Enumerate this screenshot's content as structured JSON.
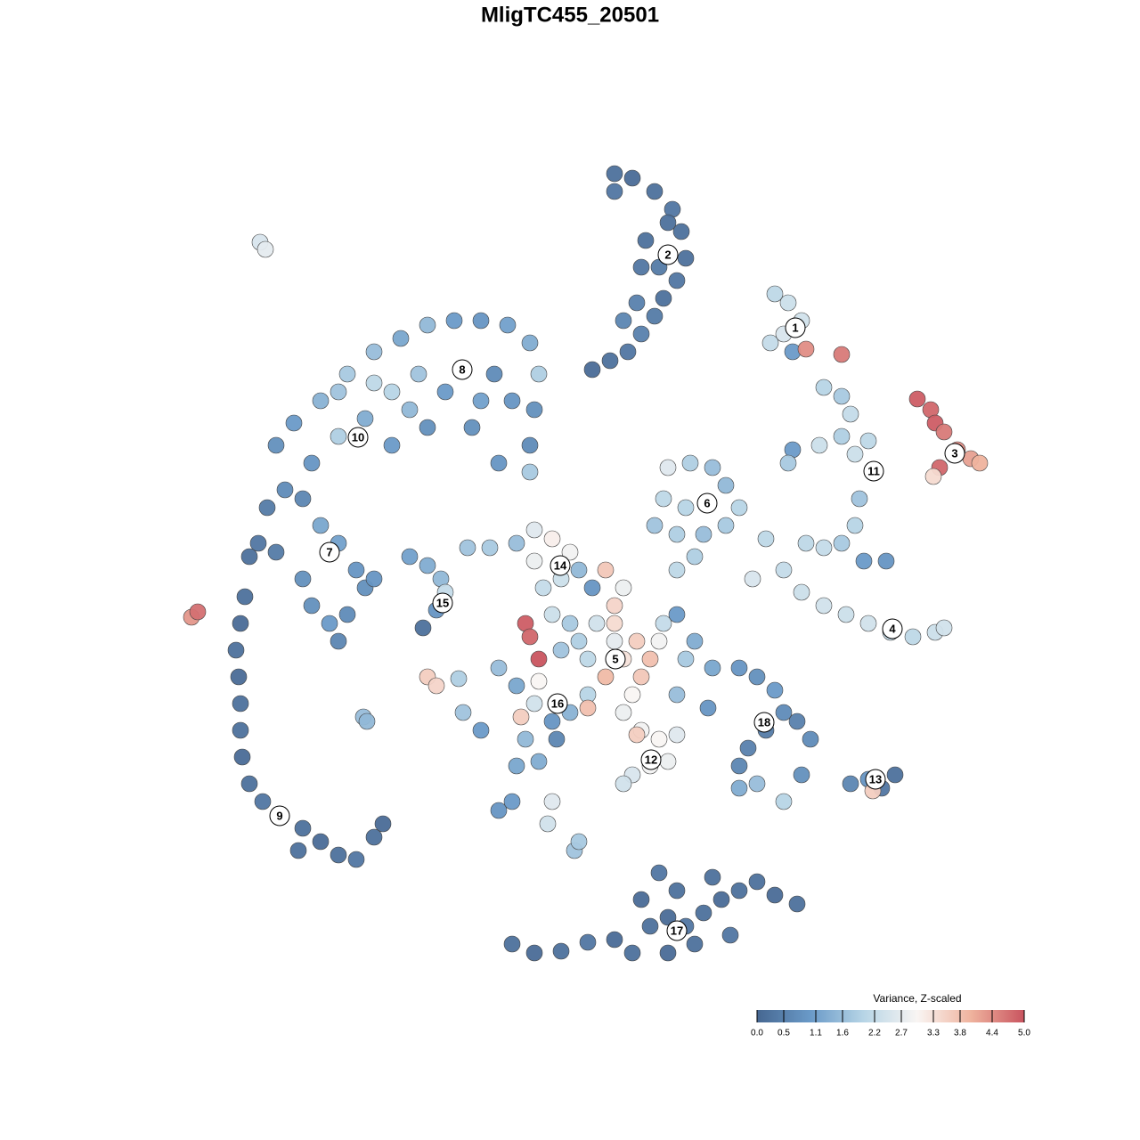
{
  "chart_data": {
    "type": "scatter",
    "title": "MligTC455_20501",
    "xlim": [
      0,
      1280
    ],
    "ylim": [
      1280,
      0
    ],
    "x": [
      690,
      710,
      735,
      755,
      765,
      770,
      760,
      745,
      735,
      720,
      705,
      685,
      665,
      700,
      720,
      725,
      740,
      690,
      750,
      715,
      870,
      885,
      900,
      880,
      865,
      890,
      905,
      945,
      1030,
      1045,
      1050,
      1060,
      1075,
      1090,
      1100,
      1055,
      1048,
      925,
      945,
      955,
      945,
      960,
      975,
      980,
      965,
      960,
      945,
      925,
      905,
      970,
      995,
      890,
      920,
      885,
      860,
      880,
      900,
      925,
      950,
      975,
      1000,
      1025,
      1050,
      1060,
      845,
      750,
      775,
      800,
      815,
      795,
      770,
      745,
      735,
      760,
      790,
      815,
      830,
      780,
      760,
      310,
      330,
      360,
      390,
      420,
      450,
      480,
      510,
      540,
      570,
      595,
      605,
      600,
      595,
      595,
      560,
      530,
      500,
      470,
      440,
      410,
      380,
      350,
      440,
      480,
      520,
      555,
      575,
      540,
      460,
      420,
      380,
      300,
      320,
      340,
      360,
      380,
      400,
      410,
      390,
      370,
      350,
      380,
      420,
      340,
      290,
      280,
      310,
      275,
      270,
      265,
      268,
      270,
      270,
      272,
      280,
      295,
      315,
      340,
      360,
      380,
      400,
      420,
      430,
      335,
      460,
      480,
      495,
      500,
      490,
      475,
      525,
      550,
      580,
      600,
      620,
      640,
      630,
      610,
      600,
      650,
      680,
      700,
      690,
      670,
      650,
      690,
      715,
      700,
      720,
      730,
      740,
      710,
      680,
      660,
      640,
      620,
      630,
      745,
      760,
      780,
      770,
      665,
      690,
      560,
      580,
      600,
      620,
      640,
      660,
      625,
      520,
      540,
      590,
      605,
      585,
      660,
      590,
      595,
      605,
      480,
      490,
      515,
      700,
      720,
      740,
      760,
      730,
      710,
      750,
      700,
      715,
      800,
      830,
      850,
      870,
      880,
      860,
      840,
      830,
      850,
      880,
      900,
      910,
      895,
      830,
      955,
      975,
      990,
      1005,
      980,
      575,
      600,
      630,
      660,
      690,
      710,
      730,
      750,
      770,
      790,
      810,
      830,
      850,
      870,
      895,
      740,
      760,
      720,
      800,
      820,
      780,
      750,
      292,
      298,
      215,
      222,
      408,
      412,
      560,
      575,
      620,
      615,
      645,
      650,
      580,
      605,
      795,
      760
    ],
    "y": [
      195,
      200,
      215,
      235,
      260,
      290,
      315,
      335,
      355,
      375,
      395,
      405,
      415,
      360,
      300,
      270,
      300,
      215,
      250,
      340,
      330,
      340,
      360,
      375,
      385,
      395,
      392,
      398,
      448,
      460,
      475,
      485,
      505,
      515,
      520,
      525,
      535,
      435,
      445,
      465,
      490,
      510,
      495,
      530,
      560,
      590,
      610,
      615,
      610,
      630,
      630,
      505,
      500,
      520,
      605,
      640,
      665,
      680,
      690,
      700,
      710,
      715,
      710,
      705,
      650,
      525,
      520,
      525,
      545,
      565,
      570,
      560,
      590,
      600,
      600,
      590,
      570,
      625,
      640,
      500,
      475,
      450,
      420,
      395,
      380,
      365,
      360,
      360,
      365,
      385,
      420,
      460,
      500,
      530,
      520,
      480,
      440,
      420,
      440,
      470,
      490,
      520,
      500,
      480,
      415,
      420,
      450,
      450,
      460,
      430,
      440,
      570,
      550,
      560,
      590,
      610,
      640,
      660,
      690,
      700,
      680,
      720,
      650,
      650,
      610,
      625,
      620,
      670,
      700,
      730,
      760,
      790,
      820,
      850,
      880,
      900,
      915,
      930,
      945,
      960,
      965,
      940,
      925,
      955,
      625,
      635,
      650,
      665,
      685,
      705,
      615,
      615,
      610,
      595,
      605,
      620,
      650,
      660,
      630,
      640,
      640,
      660,
      680,
      700,
      720,
      700,
      720,
      740,
      760,
      740,
      720,
      780,
      760,
      740,
      700,
      690,
      730,
      700,
      690,
      720,
      740,
      660,
      720,
      750,
      770,
      790,
      810,
      800,
      780,
      830,
      800,
      820,
      830,
      765,
      805,
      795,
      700,
      715,
      740,
      760,
      770,
      762,
      800,
      820,
      830,
      825,
      860,
      870,
      855,
      880,
      825,
      750,
      750,
      760,
      775,
      800,
      820,
      840,
      860,
      880,
      900,
      870,
      830,
      810,
      885,
      880,
      875,
      885,
      870,
      888,
      1060,
      1070,
      1068,
      1058,
      1055,
      1070,
      1040,
      1030,
      1040,
      1025,
      1010,
      1000,
      990,
      1005,
      1015,
      980,
      1000,
      1010,
      985,
      1050,
      1060,
      1070,
      272,
      280,
      693,
      687,
      805,
      810,
      910,
      900,
      900,
      925,
      955,
      945,
      860,
      855,
      795,
      780
    ],
    "values": [
      0.2,
      0.1,
      0.2,
      0.3,
      0.2,
      0.2,
      0.3,
      0.2,
      0.4,
      0.5,
      0.3,
      0.2,
      0.1,
      0.6,
      0.3,
      0.2,
      0.4,
      0.3,
      0.2,
      0.5,
      2.1,
      2.3,
      2.4,
      2.5,
      2.2,
      1.0,
      4.4,
      4.6,
      4.9,
      4.8,
      4.9,
      4.6,
      4.4,
      4.2,
      4.0,
      4.8,
      3.4,
      2.0,
      1.8,
      2.2,
      1.9,
      2.3,
      2.1,
      1.9,
      1.7,
      2.0,
      1.8,
      2.2,
      2.1,
      1.0,
      0.9,
      1.0,
      2.3,
      1.8,
      2.1,
      2.2,
      2.3,
      2.4,
      2.3,
      2.4,
      2.2,
      2.1,
      2.3,
      2.4,
      2.5,
      2.6,
      1.9,
      1.6,
      1.5,
      1.8,
      2.0,
      2.1,
      1.7,
      1.9,
      1.6,
      1.8,
      2.0,
      1.9,
      2.1,
      0.8,
      1.0,
      1.4,
      1.8,
      1.6,
      1.2,
      1.5,
      1.0,
      0.9,
      1.1,
      1.3,
      1.9,
      0.8,
      0.7,
      1.8,
      0.9,
      0.8,
      1.0,
      1.7,
      2.0,
      1.3,
      1.9,
      0.9,
      1.0,
      0.8,
      1.2,
      0.7,
      0.9,
      1.1,
      1.5,
      2.1,
      1.7,
      0.4,
      0.7,
      0.6,
      1.2,
      1.1,
      0.9,
      0.8,
      0.7,
      1.0,
      0.8,
      0.6,
      0.9,
      0.8,
      0.3,
      0.2,
      0.4,
      0.2,
      0.1,
      0.2,
      0.1,
      0.2,
      0.2,
      0.1,
      0.2,
      0.3,
      0.2,
      0.2,
      0.1,
      0.2,
      0.3,
      0.2,
      0.1,
      0.2,
      1.1,
      1.3,
      1.5,
      2.2,
      0.9,
      0.2,
      1.7,
      1.8,
      1.6,
      2.6,
      3.1,
      2.9,
      2.3,
      2.2,
      2.8,
      1.5,
      3.7,
      2.8,
      3.5,
      2.4,
      1.9,
      3.4,
      3.6,
      3.3,
      3.7,
      3.8,
      2.9,
      3.0,
      3.9,
      2.1,
      1.8,
      2.3,
      1.7,
      2.2,
      1.0,
      1.3,
      1.8,
      0.9,
      2.7,
      1.6,
      1.2,
      2.4,
      0.9,
      1.4,
      2.0,
      0.6,
      1.7,
      1.0,
      1.5,
      3.0,
      3.6,
      3.8,
      4.9,
      4.8,
      5.0,
      3.6,
      3.5,
      1.9,
      2.8,
      2.9,
      3.0,
      2.6,
      2.9,
      2.5,
      2.8,
      2.4,
      3.6,
      1.2,
      0.9,
      0.8,
      1.0,
      0.7,
      0.4,
      0.5,
      0.6,
      1.6,
      2.0,
      0.8,
      0.7,
      0.5,
      1.3,
      0.6,
      0.9,
      0.3,
      0.2,
      3.6,
      0.2,
      0.1,
      0.2,
      0.3,
      0.1,
      0.2,
      0.2,
      0.1,
      0.3,
      0.2,
      0.1,
      0.2,
      0.2,
      0.1,
      0.2,
      0.3,
      0.2,
      0.1,
      0.2,
      0.3,
      0.2,
      0.1,
      2.5,
      2.7,
      4.3,
      4.7,
      1.6,
      1.5,
      0.9,
      1.0,
      2.6,
      2.4,
      1.7,
      1.8,
      1.2,
      1.3,
      0.9,
      1.6
    ],
    "clusters": [
      {
        "label": "1",
        "x": 893,
        "y": 368
      },
      {
        "label": "2",
        "x": 750,
        "y": 286
      },
      {
        "label": "3",
        "x": 1072,
        "y": 509
      },
      {
        "label": "4",
        "x": 1002,
        "y": 706
      },
      {
        "label": "5",
        "x": 691,
        "y": 740
      },
      {
        "label": "6",
        "x": 794,
        "y": 565
      },
      {
        "label": "7",
        "x": 370,
        "y": 620
      },
      {
        "label": "8",
        "x": 519,
        "y": 415
      },
      {
        "label": "9",
        "x": 314,
        "y": 916
      },
      {
        "label": "10",
        "x": 402,
        "y": 491
      },
      {
        "label": "11",
        "x": 981,
        "y": 529
      },
      {
        "label": "12",
        "x": 731,
        "y": 853
      },
      {
        "label": "13",
        "x": 983,
        "y": 875
      },
      {
        "label": "14",
        "x": 629,
        "y": 635
      },
      {
        "label": "15",
        "x": 497,
        "y": 677
      },
      {
        "label": "16",
        "x": 626,
        "y": 790
      },
      {
        "label": "17",
        "x": 760,
        "y": 1045
      },
      {
        "label": "18",
        "x": 858,
        "y": 811
      }
    ],
    "colorbar_title": "Variance, Z-scaled",
    "clim": [
      0,
      5
    ],
    "cticks": [
      {
        "value": 0,
        "label": "0.0"
      },
      0.5,
      1.1,
      1.6,
      2.2,
      2.7,
      3.3,
      3.8,
      4.4,
      {
        "value": 5,
        "label": "5.0"
      }
    ],
    "colormap": [
      "#466791",
      "#6a9ac8",
      "#b7d5e6",
      "#f9f5f3",
      "#efb39e",
      "#c9545f"
    ]
  }
}
